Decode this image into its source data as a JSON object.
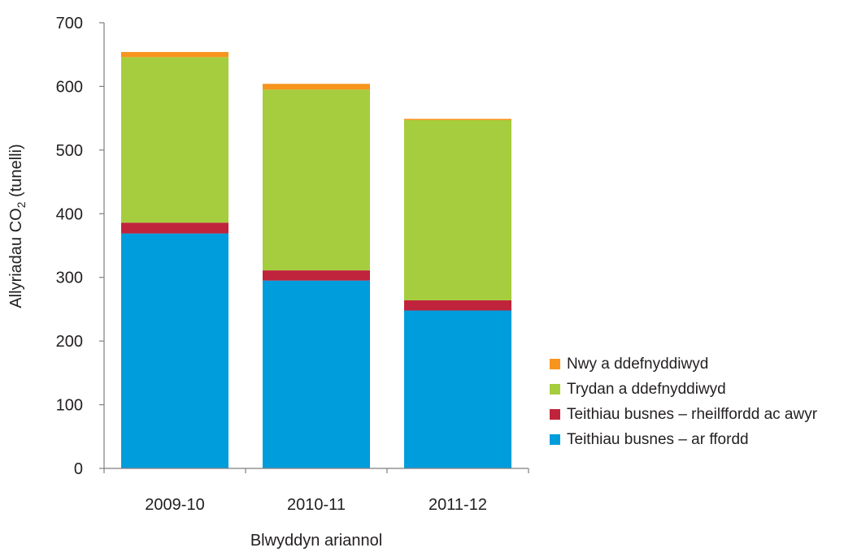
{
  "chart_data": {
    "type": "bar",
    "stacked": true,
    "categories": [
      "2009-10",
      "2010-11",
      "2011-12"
    ],
    "series": [
      {
        "name": "Teithiau busnes – ar ffordd",
        "color": "#009ddc",
        "values": [
          369,
          295,
          248
        ]
      },
      {
        "name": "Teithiau busnes – rheilffordd ac awyr",
        "color": "#c0233c",
        "values": [
          17,
          16,
          16
        ]
      },
      {
        "name": "Trydan a ddefnyddiwyd",
        "color": "#a6cd3d",
        "values": [
          260,
          284,
          283
        ]
      },
      {
        "name": "Nwy a ddefnyddiwyd",
        "color": "#f7941d",
        "values": [
          8,
          9,
          2
        ]
      }
    ],
    "xlabel": "Blwyddyn ariannol",
    "ylabel_main": "Allyriadau CO",
    "ylabel_sub": "2",
    "ylabel_tail": " (tunelli)",
    "ylim": [
      0,
      700
    ],
    "yticks": [
      0,
      100,
      200,
      300,
      400,
      500,
      600,
      700
    ],
    "legend_position": "right",
    "legend_order": [
      3,
      2,
      1,
      0
    ],
    "grid": false
  }
}
